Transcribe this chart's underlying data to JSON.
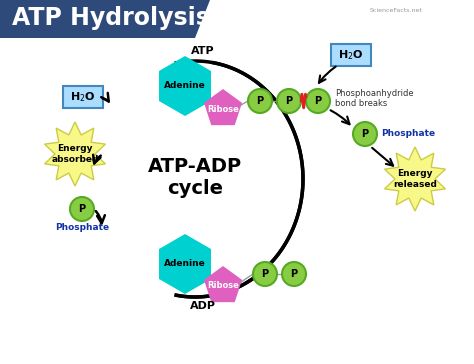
{
  "title": "ATP Hydrolysis",
  "title_bg": "#2d4a7a",
  "title_color": "white",
  "bg_color": "white",
  "center_text_line1": "ATP-ADP",
  "center_text_line2": "cycle",
  "atp_label": "ATP",
  "adp_label": "ADP",
  "adenine_color": "#00d0d0",
  "ribose_color": "#e060c0",
  "phosphate_fill": "#88cc44",
  "phosphate_edge": "#55aa22",
  "energy_fill": "#f8f888",
  "energy_edge": "#cccc44",
  "h2o_fill": "#aaddff",
  "h2o_edge": "#4488bb",
  "wave_color": "#dd2222",
  "arrow_color": "black",
  "phosphate_text_color": "#1133aa",
  "sciencefacts": "ScienceFacts.net",
  "phosanhydride_text": "Phosphoanhydride\nbond breaks",
  "energy_released_text": "Energy\nreleased",
  "energy_absorbed_text": "Energy\nabsorbed",
  "phosphate_label": "Phosphate"
}
